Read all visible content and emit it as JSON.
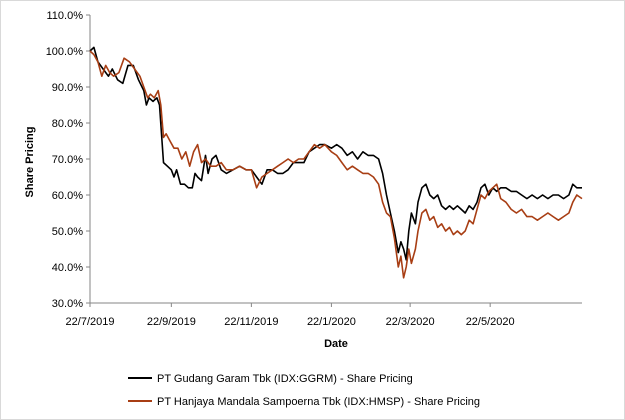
{
  "chart_data": {
    "type": "line",
    "title": "",
    "xlabel": "Date",
    "ylabel": "Share Pricing",
    "x_range": [
      "2019-07-22",
      "2020-07-31"
    ],
    "ylim": [
      30,
      110
    ],
    "y_ticks": [
      "30.0%",
      "40.0%",
      "50.0%",
      "60.0%",
      "70.0%",
      "80.0%",
      "90.0%",
      "100.0%",
      "110.0%"
    ],
    "y_tick_values": [
      30,
      40,
      50,
      60,
      70,
      80,
      90,
      100,
      110
    ],
    "x_ticks": [
      "22/7/2019",
      "22/9/2019",
      "22/11/2019",
      "22/1/2020",
      "22/3/2020",
      "22/5/2020"
    ],
    "x_tick_dates": [
      "2019-07-22",
      "2019-09-22",
      "2019-11-22",
      "2020-01-22",
      "2020-03-22",
      "2020-05-22"
    ],
    "grid": false,
    "legend_position": "bottom",
    "series": [
      {
        "name": "PT Gudang Garam Tbk (IDX:GGRM) - Share Pricing",
        "color": "#000000",
        "points": [
          [
            "2019-07-22",
            100
          ],
          [
            "2019-07-25",
            101
          ],
          [
            "2019-07-28",
            97
          ],
          [
            "2019-08-01",
            95
          ],
          [
            "2019-08-05",
            93
          ],
          [
            "2019-08-08",
            95
          ],
          [
            "2019-08-12",
            92
          ],
          [
            "2019-08-16",
            91
          ],
          [
            "2019-08-20",
            96
          ],
          [
            "2019-08-24",
            96
          ],
          [
            "2019-08-28",
            92
          ],
          [
            "2019-09-01",
            89
          ],
          [
            "2019-09-03",
            85
          ],
          [
            "2019-09-05",
            87
          ],
          [
            "2019-09-08",
            86
          ],
          [
            "2019-09-11",
            87
          ],
          [
            "2019-09-13",
            85
          ],
          [
            "2019-09-16",
            69
          ],
          [
            "2019-09-19",
            68
          ],
          [
            "2019-09-22",
            67
          ],
          [
            "2019-09-24",
            65
          ],
          [
            "2019-09-26",
            67
          ],
          [
            "2019-09-29",
            63
          ],
          [
            "2019-10-02",
            63
          ],
          [
            "2019-10-05",
            62
          ],
          [
            "2019-10-08",
            62
          ],
          [
            "2019-10-10",
            66
          ],
          [
            "2019-10-12",
            65
          ],
          [
            "2019-10-15",
            64
          ],
          [
            "2019-10-18",
            71
          ],
          [
            "2019-10-20",
            66
          ],
          [
            "2019-10-23",
            70
          ],
          [
            "2019-10-26",
            71
          ],
          [
            "2019-10-30",
            67
          ],
          [
            "2019-11-03",
            66
          ],
          [
            "2019-11-08",
            67
          ],
          [
            "2019-11-13",
            68
          ],
          [
            "2019-11-18",
            67
          ],
          [
            "2019-11-22",
            67
          ],
          [
            "2019-11-26",
            65
          ],
          [
            "2019-11-30",
            63
          ],
          [
            "2019-12-04",
            67
          ],
          [
            "2019-12-08",
            67
          ],
          [
            "2019-12-12",
            66
          ],
          [
            "2019-12-16",
            66
          ],
          [
            "2019-12-20",
            67
          ],
          [
            "2019-12-24",
            69
          ],
          [
            "2019-12-28",
            69
          ],
          [
            "2020-01-01",
            69
          ],
          [
            "2020-01-05",
            72
          ],
          [
            "2020-01-09",
            73
          ],
          [
            "2020-01-13",
            74
          ],
          [
            "2020-01-17",
            74
          ],
          [
            "2020-01-22",
            73
          ],
          [
            "2020-01-26",
            74
          ],
          [
            "2020-01-30",
            73
          ],
          [
            "2020-02-03",
            71
          ],
          [
            "2020-02-07",
            72
          ],
          [
            "2020-02-11",
            70
          ],
          [
            "2020-02-15",
            72
          ],
          [
            "2020-02-19",
            71
          ],
          [
            "2020-02-23",
            71
          ],
          [
            "2020-02-27",
            70
          ],
          [
            "2020-03-01",
            66
          ],
          [
            "2020-03-04",
            60
          ],
          [
            "2020-03-07",
            55
          ],
          [
            "2020-03-10",
            50
          ],
          [
            "2020-03-13",
            44
          ],
          [
            "2020-03-15",
            47
          ],
          [
            "2020-03-17",
            45
          ],
          [
            "2020-03-19",
            42
          ],
          [
            "2020-03-21",
            50
          ],
          [
            "2020-03-23",
            55
          ],
          [
            "2020-03-26",
            52
          ],
          [
            "2020-03-28",
            58
          ],
          [
            "2020-03-31",
            62
          ],
          [
            "2020-04-03",
            63
          ],
          [
            "2020-04-06",
            60
          ],
          [
            "2020-04-09",
            59
          ],
          [
            "2020-04-12",
            60
          ],
          [
            "2020-04-15",
            57
          ],
          [
            "2020-04-18",
            56
          ],
          [
            "2020-04-21",
            57
          ],
          [
            "2020-04-24",
            56
          ],
          [
            "2020-04-27",
            57
          ],
          [
            "2020-04-30",
            56
          ],
          [
            "2020-05-03",
            55
          ],
          [
            "2020-05-06",
            57
          ],
          [
            "2020-05-09",
            56
          ],
          [
            "2020-05-12",
            58
          ],
          [
            "2020-05-15",
            62
          ],
          [
            "2020-05-18",
            63
          ],
          [
            "2020-05-21",
            60
          ],
          [
            "2020-05-24",
            62
          ],
          [
            "2020-05-27",
            61
          ],
          [
            "2020-05-30",
            62
          ],
          [
            "2020-06-03",
            62
          ],
          [
            "2020-06-07",
            61
          ],
          [
            "2020-06-11",
            61
          ],
          [
            "2020-06-15",
            60
          ],
          [
            "2020-06-19",
            59
          ],
          [
            "2020-06-23",
            60
          ],
          [
            "2020-06-27",
            59
          ],
          [
            "2020-07-01",
            60
          ],
          [
            "2020-07-05",
            59
          ],
          [
            "2020-07-09",
            60
          ],
          [
            "2020-07-13",
            60
          ],
          [
            "2020-07-17",
            59
          ],
          [
            "2020-07-21",
            60
          ],
          [
            "2020-07-24",
            63
          ],
          [
            "2020-07-27",
            62
          ],
          [
            "2020-07-31",
            62
          ]
        ]
      },
      {
        "name": "PT Hanjaya Mandala Sampoerna Tbk (IDX:HMSP) - Share Pricing",
        "color": "#a83e14",
        "points": [
          [
            "2019-07-22",
            100
          ],
          [
            "2019-07-25",
            99
          ],
          [
            "2019-07-28",
            97
          ],
          [
            "2019-07-31",
            93
          ],
          [
            "2019-08-03",
            96
          ],
          [
            "2019-08-06",
            94
          ],
          [
            "2019-08-09",
            93
          ],
          [
            "2019-08-13",
            94
          ],
          [
            "2019-08-17",
            98
          ],
          [
            "2019-08-21",
            97
          ],
          [
            "2019-08-25",
            95
          ],
          [
            "2019-08-29",
            93
          ],
          [
            "2019-09-01",
            90
          ],
          [
            "2019-09-04",
            87
          ],
          [
            "2019-09-06",
            88
          ],
          [
            "2019-09-09",
            87
          ],
          [
            "2019-09-12",
            89
          ],
          [
            "2019-09-14",
            85
          ],
          [
            "2019-09-16",
            76
          ],
          [
            "2019-09-18",
            77
          ],
          [
            "2019-09-21",
            75
          ],
          [
            "2019-09-24",
            73
          ],
          [
            "2019-09-27",
            73
          ],
          [
            "2019-09-30",
            70
          ],
          [
            "2019-10-03",
            72
          ],
          [
            "2019-10-06",
            68
          ],
          [
            "2019-10-09",
            72
          ],
          [
            "2019-10-12",
            74
          ],
          [
            "2019-10-15",
            69
          ],
          [
            "2019-10-18",
            70
          ],
          [
            "2019-10-22",
            68
          ],
          [
            "2019-10-26",
            68
          ],
          [
            "2019-10-30",
            69
          ],
          [
            "2019-11-03",
            67
          ],
          [
            "2019-11-08",
            67
          ],
          [
            "2019-11-13",
            68
          ],
          [
            "2019-11-18",
            67
          ],
          [
            "2019-11-22",
            67
          ],
          [
            "2019-11-26",
            62
          ],
          [
            "2019-11-30",
            65
          ],
          [
            "2019-12-04",
            66
          ],
          [
            "2019-12-08",
            67
          ],
          [
            "2019-12-12",
            68
          ],
          [
            "2019-12-16",
            69
          ],
          [
            "2019-12-20",
            70
          ],
          [
            "2019-12-24",
            69
          ],
          [
            "2019-12-28",
            70
          ],
          [
            "2020-01-01",
            70
          ],
          [
            "2020-01-05",
            72
          ],
          [
            "2020-01-09",
            74
          ],
          [
            "2020-01-13",
            73
          ],
          [
            "2020-01-17",
            74
          ],
          [
            "2020-01-22",
            72
          ],
          [
            "2020-01-26",
            71
          ],
          [
            "2020-01-30",
            69
          ],
          [
            "2020-02-03",
            67
          ],
          [
            "2020-02-07",
            68
          ],
          [
            "2020-02-11",
            67
          ],
          [
            "2020-02-15",
            66
          ],
          [
            "2020-02-19",
            66
          ],
          [
            "2020-02-23",
            65
          ],
          [
            "2020-02-27",
            63
          ],
          [
            "2020-03-01",
            58
          ],
          [
            "2020-03-04",
            55
          ],
          [
            "2020-03-07",
            54
          ],
          [
            "2020-03-10",
            48
          ],
          [
            "2020-03-13",
            40
          ],
          [
            "2020-03-15",
            43
          ],
          [
            "2020-03-17",
            37
          ],
          [
            "2020-03-19",
            40
          ],
          [
            "2020-03-21",
            45
          ],
          [
            "2020-03-23",
            41
          ],
          [
            "2020-03-26",
            45
          ],
          [
            "2020-03-28",
            50
          ],
          [
            "2020-03-31",
            55
          ],
          [
            "2020-04-03",
            56
          ],
          [
            "2020-04-06",
            53
          ],
          [
            "2020-04-09",
            54
          ],
          [
            "2020-04-12",
            51
          ],
          [
            "2020-04-15",
            52
          ],
          [
            "2020-04-18",
            50
          ],
          [
            "2020-04-21",
            51
          ],
          [
            "2020-04-24",
            49
          ],
          [
            "2020-04-27",
            50
          ],
          [
            "2020-04-30",
            49
          ],
          [
            "2020-05-03",
            50
          ],
          [
            "2020-05-06",
            53
          ],
          [
            "2020-05-09",
            52
          ],
          [
            "2020-05-12",
            56
          ],
          [
            "2020-05-15",
            60
          ],
          [
            "2020-05-18",
            59
          ],
          [
            "2020-05-21",
            61
          ],
          [
            "2020-05-24",
            62
          ],
          [
            "2020-05-27",
            63
          ],
          [
            "2020-05-30",
            59
          ],
          [
            "2020-06-03",
            58
          ],
          [
            "2020-06-07",
            56
          ],
          [
            "2020-06-11",
            55
          ],
          [
            "2020-06-15",
            56
          ],
          [
            "2020-06-19",
            54
          ],
          [
            "2020-06-23",
            54
          ],
          [
            "2020-06-27",
            53
          ],
          [
            "2020-07-01",
            54
          ],
          [
            "2020-07-05",
            55
          ],
          [
            "2020-07-09",
            54
          ],
          [
            "2020-07-13",
            53
          ],
          [
            "2020-07-17",
            54
          ],
          [
            "2020-07-21",
            55
          ],
          [
            "2020-07-24",
            58
          ],
          [
            "2020-07-27",
            60
          ],
          [
            "2020-07-31",
            59
          ]
        ]
      }
    ]
  }
}
